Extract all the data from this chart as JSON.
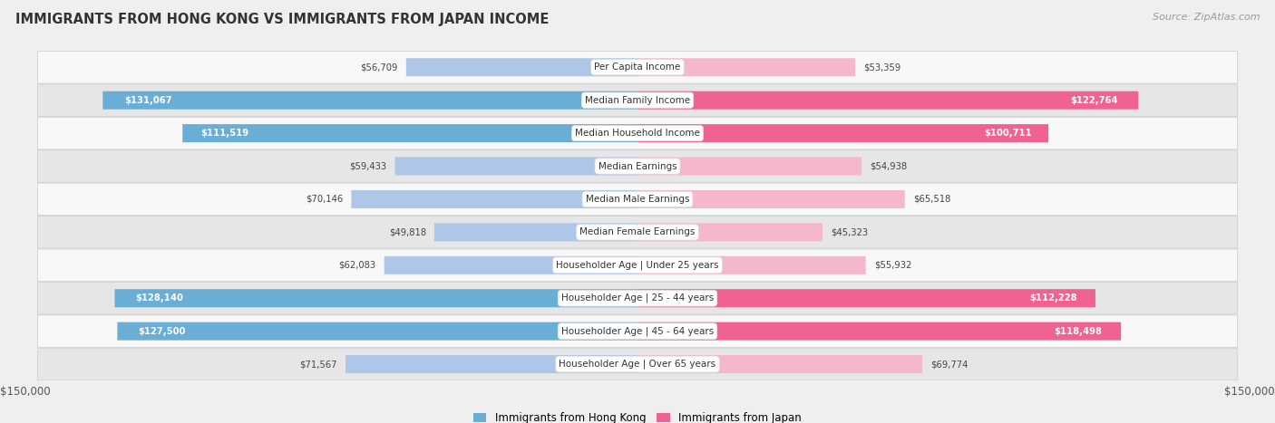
{
  "title": "IMMIGRANTS FROM HONG KONG VS IMMIGRANTS FROM JAPAN INCOME",
  "source": "Source: ZipAtlas.com",
  "categories": [
    "Per Capita Income",
    "Median Family Income",
    "Median Household Income",
    "Median Earnings",
    "Median Male Earnings",
    "Median Female Earnings",
    "Householder Age | Under 25 years",
    "Householder Age | 25 - 44 years",
    "Householder Age | 45 - 64 years",
    "Householder Age | Over 65 years"
  ],
  "hk_values": [
    56709,
    131067,
    111519,
    59433,
    70146,
    49818,
    62083,
    128140,
    127500,
    71567
  ],
  "jp_values": [
    53359,
    122764,
    100711,
    54938,
    65518,
    45323,
    55932,
    112228,
    118498,
    69774
  ],
  "hk_color_light": "#aec6e8",
  "hk_color_dark": "#6aaed6",
  "jp_color_light": "#f5b8cb",
  "jp_color_dark": "#f06292",
  "max_value": 150000,
  "bg_color": "#efefef",
  "row_bg_odd": "#f8f8f8",
  "row_bg_even": "#e6e6e6",
  "label_white": "#ffffff",
  "label_dark": "#444444",
  "inside_threshold": 90000,
  "legend_hk": "Immigrants from Hong Kong",
  "legend_jp": "Immigrants from Japan",
  "xlabel_left": "$150,000",
  "xlabel_right": "$150,000"
}
